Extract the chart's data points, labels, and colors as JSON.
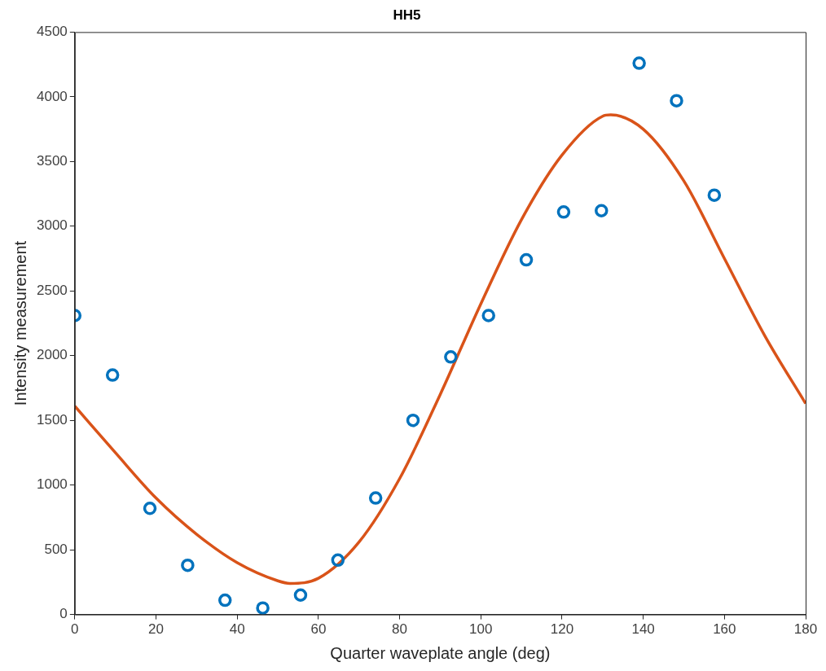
{
  "chart_data": {
    "type": "scatter",
    "title": "HH5",
    "xlabel": "Quarter waveplate angle (deg)",
    "ylabel": "Intensity measurement",
    "xlim": [
      0,
      180
    ],
    "xticks": [
      0,
      20,
      40,
      60,
      80,
      100,
      120,
      140,
      160,
      180
    ],
    "ylim": [
      0,
      4500
    ],
    "yticks": [
      0,
      500,
      1000,
      1500,
      2000,
      2500,
      3000,
      3500,
      4000,
      4500
    ],
    "grid": false,
    "legend": false,
    "series": [
      {
        "marker": "circle",
        "color": "#0072bd",
        "x": [
          0,
          9.3,
          18.5,
          27.8,
          37,
          46.3,
          55.6,
          64.8,
          74.1,
          83.3,
          92.6,
          101.9,
          111.2,
          120.4,
          129.7,
          139,
          148.2,
          157.5
        ],
        "values": [
          2310,
          1850,
          820,
          380,
          110,
          50,
          150,
          420,
          900,
          1500,
          1990,
          2310,
          2740,
          3110,
          3120,
          4260,
          3970,
          3240
        ]
      },
      {
        "type": "line",
        "marker": "none",
        "color": "#d95319",
        "x": [
          0,
          10,
          20,
          30,
          40,
          50,
          53,
          60,
          70,
          80,
          90,
          100,
          110,
          120,
          130,
          132,
          140,
          150,
          160,
          170,
          180
        ],
        "values": [
          1610,
          1250,
          900,
          620,
          400,
          260,
          240,
          280,
          560,
          1050,
          1700,
          2400,
          3050,
          3550,
          3850,
          3860,
          3750,
          3350,
          2750,
          2150,
          1630
        ]
      }
    ]
  }
}
